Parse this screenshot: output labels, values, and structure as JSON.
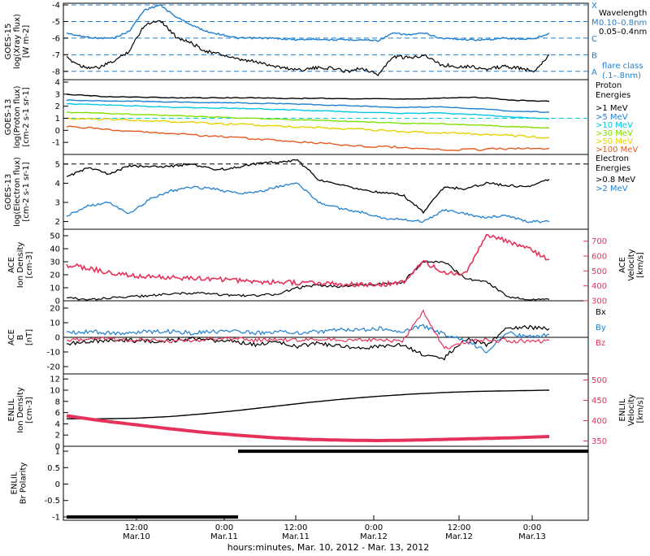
{
  "chart_data": [
    {
      "type": "line",
      "panel": "goes15-xray",
      "ylabel": [
        "GOES-15",
        "log(Xray flux)",
        "[W m-2]"
      ],
      "ylim": [
        -8.5,
        -3.9
      ],
      "ticks": [
        -4,
        -5,
        -6,
        -7,
        -8
      ],
      "flare_class_levels": [
        {
          "label": "X",
          "value": -4
        },
        {
          "label": "M",
          "value": -5
        },
        {
          "label": "C",
          "value": -6
        },
        {
          "label": "B",
          "value": -7
        },
        {
          "label": "A",
          "value": -8
        }
      ],
      "legend": {
        "title": "Wavelength",
        "entries": [
          "0.10–0.8nm",
          "0.05–0.4nm"
        ],
        "footer": [
          "flare class",
          "(.1–.8nm)"
        ]
      },
      "series": [
        {
          "name": "0.10–0.8nm",
          "color": "#1f7fd0",
          "values": [
            -5.7,
            -5.9,
            -6.0,
            -6.0,
            -5.6,
            -4.3,
            -4.0,
            -4.7,
            -5.2,
            -5.6,
            -5.8,
            -6.0,
            -6.0,
            -6.0,
            -6.05,
            -6.1,
            -6.05,
            -6.1,
            -6.1,
            -6.1,
            -6.15,
            -5.7,
            -5.8,
            -5.7,
            -6.0,
            -6.05,
            -6.1,
            -6.1,
            -6.0,
            -6.05,
            -6.05,
            -5.7
          ]
        },
        {
          "name": "0.05–0.4nm",
          "color": "#000000",
          "values": [
            -7.2,
            -7.7,
            -7.8,
            -7.4,
            -6.8,
            -5.2,
            -4.9,
            -5.9,
            -6.3,
            -6.8,
            -7.0,
            -7.3,
            -7.4,
            -7.6,
            -7.8,
            -7.9,
            -7.8,
            -7.8,
            -8.0,
            -7.8,
            -8.2,
            -7.1,
            -7.2,
            -7.0,
            -7.6,
            -7.7,
            -7.7,
            -7.9,
            -7.7,
            -7.8,
            -8.0,
            -7.0
          ]
        }
      ]
    },
    {
      "type": "line",
      "panel": "goes13-protons",
      "ylabel": [
        "GOES-13",
        "log(Proton flux)",
        "[cm-2 s-1 sr-1]"
      ],
      "ylim": [
        -2,
        4.2
      ],
      "ticks": [
        4,
        3,
        2,
        1,
        0,
        -1
      ],
      "legend": {
        "title": [
          "Proton",
          "Energies"
        ]
      },
      "series": [
        {
          "name": ">1 MeV",
          "color": "#000000",
          "values": [
            3.0,
            2.8,
            2.75,
            2.7,
            2.7,
            2.7,
            2.65,
            2.65,
            2.6,
            2.6,
            2.65,
            2.75,
            2.5,
            2.4
          ]
        },
        {
          "name": ">5 MeV",
          "color": "#1f7fd0",
          "values": [
            2.5,
            2.45,
            2.4,
            2.35,
            2.3,
            2.25,
            2.2,
            2.1,
            2.0,
            1.9,
            1.95,
            1.8,
            1.6,
            1.5
          ]
        },
        {
          "name": ">10 MeV",
          "color": "#00c8e6",
          "values": [
            2.2,
            2.1,
            2.0,
            1.9,
            1.85,
            1.8,
            1.7,
            1.6,
            1.5,
            1.4,
            1.45,
            1.3,
            1.1,
            0.95
          ]
        },
        {
          "name": ">30 MeV",
          "color": "#80e000",
          "values": [
            1.5,
            1.4,
            1.3,
            1.2,
            1.1,
            1.0,
            0.9,
            0.8,
            0.7,
            0.6,
            0.55,
            0.45,
            0.3,
            0.2
          ]
        },
        {
          "name": ">50 MeV",
          "color": "#e6d200",
          "values": [
            1.0,
            0.9,
            0.8,
            0.7,
            0.55,
            0.45,
            0.3,
            0.2,
            0.05,
            -0.1,
            -0.2,
            -0.3,
            -0.45,
            -0.6
          ]
        },
        {
          "name": ">100 MeV",
          "color": "#e65a1e",
          "values": [
            0.3,
            0.1,
            -0.1,
            -0.3,
            -0.5,
            -0.7,
            -0.9,
            -1.1,
            -1.3,
            -1.4,
            -1.6,
            -1.6,
            -1.5,
            -1.5
          ]
        }
      ]
    },
    {
      "type": "line",
      "panel": "goes13-electrons",
      "ylabel": [
        "GOES-13",
        "log(Electron flux)",
        "[cm-2 s-1 sr-1]"
      ],
      "ylim": [
        1.6,
        5.5
      ],
      "ticks": [
        5,
        4,
        3,
        2
      ],
      "legend": {
        "title": [
          "Electron",
          "Energies"
        ]
      },
      "series": [
        {
          "name": ">0.8 MeV",
          "color": "#000000",
          "values": [
            4.3,
            4.8,
            4.5,
            4.9,
            4.85,
            4.9,
            5.0,
            4.7,
            4.8,
            5.0,
            5.1,
            5.2,
            4.2,
            3.9,
            3.7,
            3.5,
            3.4,
            2.5,
            3.8,
            3.7,
            4.0,
            3.9,
            3.8,
            4.2
          ]
        },
        {
          "name": ">2 MeV",
          "color": "#1f7fd0",
          "values": [
            2.3,
            2.8,
            3.0,
            2.4,
            3.2,
            3.6,
            3.8,
            3.7,
            3.5,
            3.5,
            3.8,
            4.0,
            3.0,
            2.7,
            2.5,
            2.2,
            2.1,
            2.0,
            2.6,
            2.4,
            2.2,
            2.3,
            2.0,
            2.0
          ]
        }
      ]
    },
    {
      "type": "line",
      "panel": "ace-plasma",
      "ylabel": [
        "ACE",
        "Ion Density",
        "[cm-3]"
      ],
      "ylabel_right": [
        "ACE",
        "Velocity",
        "[km/s]"
      ],
      "ylim": [
        0,
        55
      ],
      "ticks": [
        0,
        10,
        20,
        30,
        40,
        50
      ],
      "ylim_right": [
        300,
        780
      ],
      "ticks_right": [
        300,
        400,
        500,
        600,
        700
      ],
      "series": [
        {
          "name": "density",
          "color": "#000000",
          "axis": "left",
          "values": [
            2,
            1,
            2,
            3,
            4,
            5,
            6,
            5,
            4,
            4,
            5,
            10,
            12,
            11,
            12,
            13,
            14,
            30,
            30,
            17,
            15,
            3,
            1,
            1
          ]
        },
        {
          "name": "velocity",
          "color": "#e6325a",
          "axis": "right",
          "values": [
            540,
            520,
            490,
            470,
            460,
            455,
            450,
            445,
            440,
            430,
            425,
            420,
            420,
            410,
            405,
            410,
            420,
            560,
            490,
            480,
            740,
            700,
            650,
            580
          ]
        }
      ]
    },
    {
      "type": "line",
      "panel": "ace-bfield",
      "ylabel": [
        "ACE",
        "B",
        "[nT]"
      ],
      "ylim": [
        -25,
        25
      ],
      "ticks": [
        20,
        10,
        0,
        -10,
        -20
      ],
      "series": [
        {
          "name": "Bx",
          "color": "#000000",
          "values": [
            -4,
            -3,
            -2,
            -2,
            -3,
            -2,
            -1,
            -2,
            -3,
            -5,
            -3,
            -6,
            -4,
            -6,
            -8,
            -6,
            -5,
            -12,
            -14,
            -1,
            -5,
            6,
            7,
            6
          ]
        },
        {
          "name": "By",
          "color": "#1f7fd0",
          "values": [
            3,
            4,
            3,
            3,
            4,
            4,
            3,
            4,
            4,
            3,
            4,
            3,
            4,
            5,
            5,
            6,
            4,
            8,
            2,
            -2,
            -10,
            3,
            0,
            2
          ]
        },
        {
          "name": "Bz",
          "color": "#e6325a",
          "values": [
            -2,
            -1,
            -1,
            -2,
            -2,
            -3,
            -2,
            -1,
            -1,
            -2,
            -1,
            -2,
            -1,
            -2,
            -2,
            -2,
            -3,
            18,
            -8,
            -3,
            -2,
            -2,
            -3,
            -2
          ]
        }
      ]
    },
    {
      "type": "line",
      "panel": "enlil-plasma",
      "ylabel": [
        "ENLIL",
        "Ion Density",
        "[cm-3]"
      ],
      "ylabel_right": [
        "ENLIL",
        "Velocity",
        "[km/s]"
      ],
      "ylim": [
        0,
        12.9
      ],
      "ticks": [
        0,
        2,
        4,
        6,
        8,
        10,
        12
      ],
      "ylim_right": [
        337,
        515
      ],
      "ticks_right": [
        350,
        400,
        450,
        500
      ],
      "series": [
        {
          "name": "density",
          "color": "#000000",
          "axis": "left",
          "values": [
            4.9,
            4.9,
            5.0,
            5.3,
            5.8,
            6.4,
            7.1,
            7.8,
            8.4,
            8.9,
            9.3,
            9.6,
            9.8,
            9.9,
            10.0
          ]
        },
        {
          "name": "velocity",
          "color": "#e6325a",
          "axis": "right",
          "values": [
            412,
            400,
            390,
            380,
            371,
            364,
            358,
            354,
            352,
            351,
            352,
            354,
            356,
            358,
            361
          ]
        }
      ]
    },
    {
      "type": "line",
      "panel": "enlil-polarity",
      "ylabel": [
        "ENLIL",
        "Br Polarity"
      ],
      "ylim": [
        -1.1,
        1.15
      ],
      "ticks": [
        1.0,
        0.5,
        0.0,
        -0.5,
        -1.0
      ],
      "series": [
        {
          "name": "polarity",
          "color": "#000000",
          "values": [
            -1,
            -1,
            -1,
            1,
            1,
            1,
            1,
            1
          ]
        }
      ]
    }
  ],
  "axes": {
    "x_ticks": [
      {
        "time": "12:00",
        "date": "Mar.10"
      },
      {
        "time": "0:00",
        "date": "Mar.11"
      },
      {
        "time": "12:00",
        "date": "Mar.11"
      },
      {
        "time": "0:00",
        "date": "Mar.12"
      },
      {
        "time": "12:00",
        "date": "Mar.12"
      },
      {
        "time": "0:00",
        "date": "Mar.13"
      }
    ],
    "xlabel": "hours:minutes, Mar. 10, 2012 - Mar. 13, 2012"
  },
  "legend_labels": {
    "xray_title": "Wavelength",
    "xray_a": "0.10–0.8nm",
    "xray_b": "0.05–0.4nm",
    "xray_f1": "flare class",
    "xray_f2": "(.1–.8nm)",
    "proton_t1": "Proton",
    "proton_t2": "Energies",
    "p1": ">1 MeV",
    "p2": ">5 MeV",
    "p3": ">10 MeV",
    "p4": ">30 MeV",
    "p5": ">50 MeV",
    "p6": ">100 MeV",
    "electron_t1": "Electron",
    "electron_t2": "Energies",
    "e1": ">0.8 MeV",
    "e2": ">2 MeV",
    "bx": "Bx",
    "by": "By",
    "bz": "Bz"
  },
  "ylabels": {
    "p1": [
      "GOES-15",
      "log(Xray flux)",
      "[W m-2]"
    ],
    "p2": [
      "GOES-13",
      "log(Proton flux)",
      "[cm-2 s-1 sr-1]"
    ],
    "p3": [
      "GOES-13",
      "log(Electron flux)",
      "[cm-2 s-1 sr-1]"
    ],
    "p4": [
      "ACE",
      "Ion Density",
      "[cm-3]"
    ],
    "p4r": [
      "ACE",
      "Velocity",
      "[km/s]"
    ],
    "p5": [
      "ACE",
      "B",
      "[nT]"
    ],
    "p6": [
      "ENLIL",
      "Ion Density",
      "[cm-3]"
    ],
    "p6r": [
      "ENLIL",
      "Velocity",
      "[km/s]"
    ],
    "p7": [
      "ENLIL",
      "Br Polarity"
    ]
  }
}
